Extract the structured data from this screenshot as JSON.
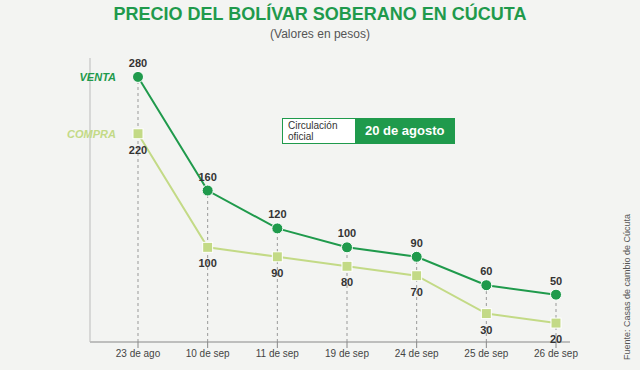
{
  "chart_data": {
    "type": "line",
    "title": "PRECIO DEL BOLÍVAR SOBERANO EN CÚCUTA",
    "subtitle": "(Valores en pesos)",
    "categories": [
      "23 de ago",
      "10 de sep",
      "11 de sep",
      "19 de sep",
      "24 de sep",
      "25 de sep",
      "26 de sep"
    ],
    "series": [
      {
        "name": "VENTA",
        "color": "#1f9a4c",
        "marker": "circle",
        "values": [
          280,
          160,
          120,
          100,
          90,
          60,
          50
        ]
      },
      {
        "name": "COMPRA",
        "color": "#c3da86",
        "marker": "square",
        "values": [
          220,
          100,
          90,
          80,
          70,
          30,
          20
        ]
      }
    ],
    "ylim": [
      0,
      300
    ],
    "data_labels": true,
    "tick_labels": "x",
    "annotations": [
      {
        "label": "Circulación oficial",
        "value": "20 de agosto"
      }
    ],
    "source": "Fuente: Casas de cambio de Cúcuta"
  }
}
